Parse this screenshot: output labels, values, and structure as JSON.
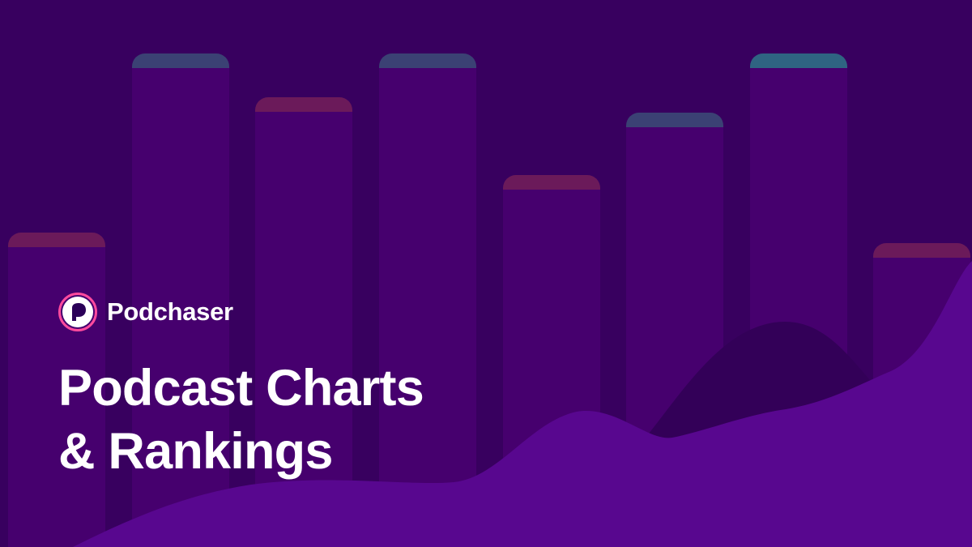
{
  "brand": {
    "name": "Podchaser",
    "logo_icon": "podchaser-logo-icon",
    "logo_ring_color": "#ff4a9e",
    "logo_fill_color": "#ffffff",
    "logo_inner_color": "#2b0058"
  },
  "headline": {
    "line1": "Podcast Charts",
    "line2": "& Rankings"
  },
  "colors": {
    "background": "#38005f",
    "bar_body": "#46006e",
    "cap_blue": "#3b4174",
    "cap_red": "#6b1a5a",
    "cap_teal": "#2f6482",
    "wave_back": "#330058",
    "wave_front": "#58078f",
    "text": "#ffffff"
  },
  "decor": {
    "bars": [
      {
        "cap": "red"
      },
      {
        "cap": "blue"
      },
      {
        "cap": "red"
      },
      {
        "cap": "blue"
      },
      {
        "cap": "red"
      },
      {
        "cap": "blue"
      },
      {
        "cap": "teal"
      },
      {
        "cap": "red"
      }
    ]
  }
}
